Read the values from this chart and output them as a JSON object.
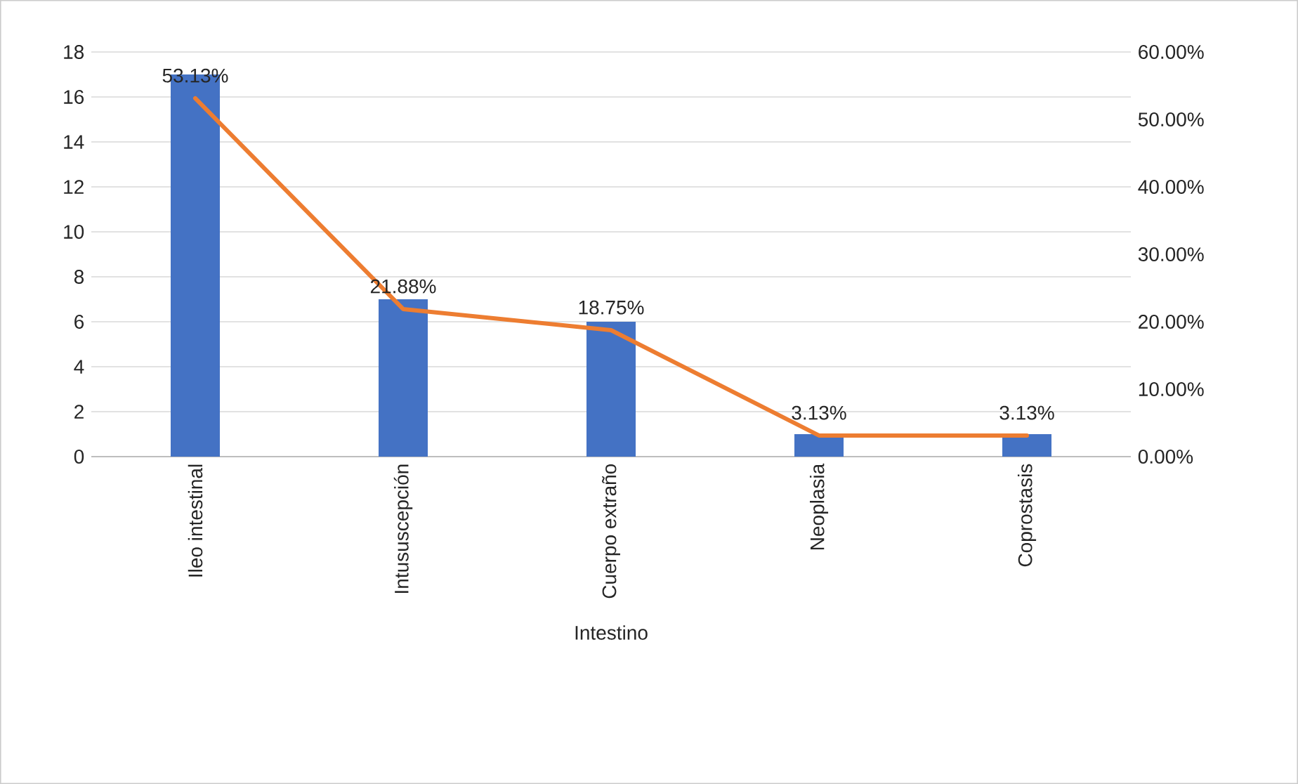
{
  "chart_data": {
    "type": "bar",
    "categories": [
      "Ileo intestinal",
      "Intususcepción",
      "Cuerpo extraño",
      "Neoplasia",
      "Coprostasis"
    ],
    "xlabel": "Intestino",
    "series": [
      {
        "color": "#4472c4",
        "values": [
          17,
          7,
          6,
          1,
          1
        ]
      },
      {
        "type": "line",
        "axis": "y2",
        "color": "#ed7d31",
        "values": [
          53.13,
          21.88,
          18.75,
          3.13,
          3.13
        ],
        "value_labels": [
          "53.13%",
          "21.88%",
          "18.75%",
          "3.13%",
          "3.13%"
        ]
      }
    ],
    "ylim": [
      0,
      18
    ],
    "yticks": [
      0,
      2,
      4,
      6,
      8,
      10,
      12,
      14,
      16,
      18
    ],
    "y2lim": [
      0,
      60
    ],
    "y2ticks": [
      {
        "value": 0,
        "label": "0.00%"
      },
      {
        "value": 10,
        "label": "10.00%"
      },
      {
        "value": 20,
        "label": "20.00%"
      },
      {
        "value": 30,
        "label": "30.00%"
      },
      {
        "value": 40,
        "label": "40.00%"
      },
      {
        "value": 50,
        "label": "50.00%"
      },
      {
        "value": 60,
        "label": "60.00%"
      }
    ],
    "grid": "y"
  }
}
